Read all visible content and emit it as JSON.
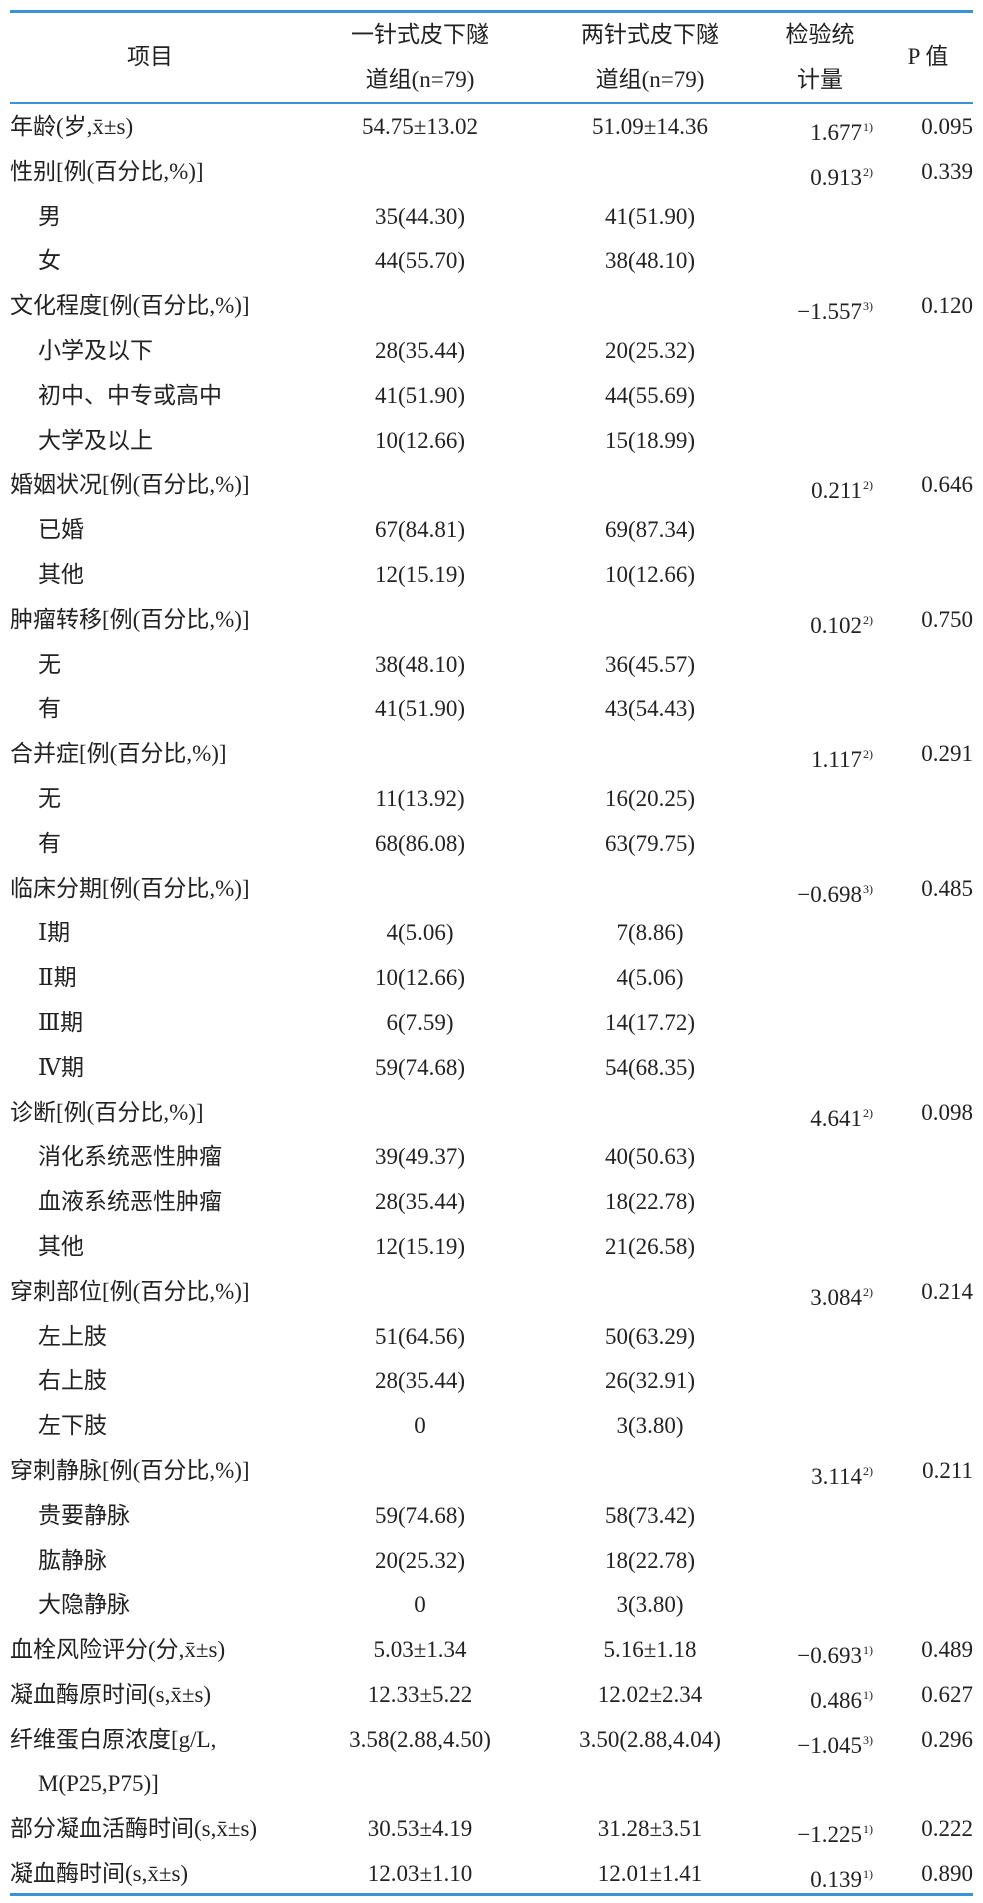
{
  "header": {
    "item": "项目",
    "group1": [
      "一针式皮下隧",
      "道组(n=79)"
    ],
    "group2": [
      "两针式皮下隧",
      "道组(n=79)"
    ],
    "stat": [
      "检验统",
      "计量"
    ],
    "p": "P 值"
  },
  "rule_color": "#3a93d4",
  "rows": [
    {
      "label": "年龄(岁,x̄±s)",
      "indent": false,
      "g1": "54.75±13.02",
      "g2": "51.09±14.36",
      "stat": "1.677",
      "note": "1)",
      "p": "0.095"
    },
    {
      "label": "性别[例(百分比,%)]",
      "indent": false,
      "g1": "",
      "g2": "",
      "stat": "0.913",
      "note": "2)",
      "p": "0.339"
    },
    {
      "label": "男",
      "indent": true,
      "g1": "35(44.30)",
      "g2": "41(51.90)",
      "stat": "",
      "note": "",
      "p": ""
    },
    {
      "label": "女",
      "indent": true,
      "g1": "44(55.70)",
      "g2": "38(48.10)",
      "stat": "",
      "note": "",
      "p": ""
    },
    {
      "label": "文化程度[例(百分比,%)]",
      "indent": false,
      "g1": "",
      "g2": "",
      "stat": "−1.557",
      "note": "3)",
      "p": "0.120"
    },
    {
      "label": "小学及以下",
      "indent": true,
      "g1": "28(35.44)",
      "g2": "20(25.32)",
      "stat": "",
      "note": "",
      "p": ""
    },
    {
      "label": "初中、中专或高中",
      "indent": true,
      "g1": "41(51.90)",
      "g2": "44(55.69)",
      "stat": "",
      "note": "",
      "p": ""
    },
    {
      "label": "大学及以上",
      "indent": true,
      "g1": "10(12.66)",
      "g2": "15(18.99)",
      "stat": "",
      "note": "",
      "p": ""
    },
    {
      "label": "婚姻状况[例(百分比,%)]",
      "indent": false,
      "g1": "",
      "g2": "",
      "stat": "0.211",
      "note": "2)",
      "p": "0.646"
    },
    {
      "label": "已婚",
      "indent": true,
      "g1": "67(84.81)",
      "g2": "69(87.34)",
      "stat": "",
      "note": "",
      "p": ""
    },
    {
      "label": "其他",
      "indent": true,
      "g1": "12(15.19)",
      "g2": "10(12.66)",
      "stat": "",
      "note": "",
      "p": ""
    },
    {
      "label": "肿瘤转移[例(百分比,%)]",
      "indent": false,
      "g1": "",
      "g2": "",
      "stat": "0.102",
      "note": "2)",
      "p": "0.750"
    },
    {
      "label": "无",
      "indent": true,
      "g1": "38(48.10)",
      "g2": "36(45.57)",
      "stat": "",
      "note": "",
      "p": ""
    },
    {
      "label": "有",
      "indent": true,
      "g1": "41(51.90)",
      "g2": "43(54.43)",
      "stat": "",
      "note": "",
      "p": ""
    },
    {
      "label": "合并症[例(百分比,%)]",
      "indent": false,
      "g1": "",
      "g2": "",
      "stat": "1.117",
      "note": "2)",
      "p": "0.291"
    },
    {
      "label": "无",
      "indent": true,
      "g1": "11(13.92)",
      "g2": "16(20.25)",
      "stat": "",
      "note": "",
      "p": ""
    },
    {
      "label": "有",
      "indent": true,
      "g1": "68(86.08)",
      "g2": "63(79.75)",
      "stat": "",
      "note": "",
      "p": ""
    },
    {
      "label": "临床分期[例(百分比,%)]",
      "indent": false,
      "g1": "",
      "g2": "",
      "stat": "−0.698",
      "note": "3)",
      "p": "0.485"
    },
    {
      "label": "Ⅰ期",
      "indent": true,
      "g1": "4(5.06)",
      "g2": "7(8.86)",
      "stat": "",
      "note": "",
      "p": ""
    },
    {
      "label": "Ⅱ期",
      "indent": true,
      "g1": "10(12.66)",
      "g2": "4(5.06)",
      "stat": "",
      "note": "",
      "p": ""
    },
    {
      "label": "Ⅲ期",
      "indent": true,
      "g1": "6(7.59)",
      "g2": "14(17.72)",
      "stat": "",
      "note": "",
      "p": ""
    },
    {
      "label": "Ⅳ期",
      "indent": true,
      "g1": "59(74.68)",
      "g2": "54(68.35)",
      "stat": "",
      "note": "",
      "p": ""
    },
    {
      "label": "诊断[例(百分比,%)]",
      "indent": false,
      "g1": "",
      "g2": "",
      "stat": "4.641",
      "note": "2)",
      "p": "0.098"
    },
    {
      "label": "消化系统恶性肿瘤",
      "indent": true,
      "g1": "39(49.37)",
      "g2": "40(50.63)",
      "stat": "",
      "note": "",
      "p": ""
    },
    {
      "label": "血液系统恶性肿瘤",
      "indent": true,
      "g1": "28(35.44)",
      "g2": "18(22.78)",
      "stat": "",
      "note": "",
      "p": ""
    },
    {
      "label": "其他",
      "indent": true,
      "g1": "12(15.19)",
      "g2": "21(26.58)",
      "stat": "",
      "note": "",
      "p": ""
    },
    {
      "label": "穿刺部位[例(百分比,%)]",
      "indent": false,
      "g1": "",
      "g2": "",
      "stat": "3.084",
      "note": "2)",
      "p": "0.214"
    },
    {
      "label": "左上肢",
      "indent": true,
      "g1": "51(64.56)",
      "g2": "50(63.29)",
      "stat": "",
      "note": "",
      "p": ""
    },
    {
      "label": "右上肢",
      "indent": true,
      "g1": "28(35.44)",
      "g2": "26(32.91)",
      "stat": "",
      "note": "",
      "p": ""
    },
    {
      "label": "左下肢",
      "indent": true,
      "g1": "0",
      "g2": "3(3.80)",
      "stat": "",
      "note": "",
      "p": ""
    },
    {
      "label": "穿刺静脉[例(百分比,%)]",
      "indent": false,
      "g1": "",
      "g2": "",
      "stat": "3.114",
      "note": "2)",
      "p": "0.211"
    },
    {
      "label": "贵要静脉",
      "indent": true,
      "g1": "59(74.68)",
      "g2": "58(73.42)",
      "stat": "",
      "note": "",
      "p": ""
    },
    {
      "label": "肱静脉",
      "indent": true,
      "g1": "20(25.32)",
      "g2": "18(22.78)",
      "stat": "",
      "note": "",
      "p": ""
    },
    {
      "label": "大隐静脉",
      "indent": true,
      "g1": "0",
      "g2": "3(3.80)",
      "stat": "",
      "note": "",
      "p": ""
    },
    {
      "label": "血栓风险评分(分,x̄±s)",
      "indent": false,
      "g1": "5.03±1.34",
      "g2": "5.16±1.18",
      "stat": "−0.693",
      "note": "1)",
      "p": "0.489"
    },
    {
      "label": "凝血酶原时间(s,x̄±s)",
      "indent": false,
      "g1": "12.33±5.22",
      "g2": "12.02±2.34",
      "stat": "0.486",
      "note": "1)",
      "p": "0.627"
    },
    {
      "label": "纤维蛋白原浓度[g/L,",
      "label2": "M(P25,P75)]",
      "indent": false,
      "g1": "3.58(2.88,4.50)",
      "g2": "3.50(2.88,4.04)",
      "stat": "−1.045",
      "note": "3)",
      "p": "0.296"
    },
    {
      "label": "部分凝血活酶时间(s,x̄±s)",
      "indent": false,
      "g1": "30.53±4.19",
      "g2": "31.28±3.51",
      "stat": "−1.225",
      "note": "1)",
      "p": "0.222"
    },
    {
      "label": "凝血酶时间(s,x̄±s)",
      "indent": false,
      "g1": "12.03±1.10",
      "g2": "12.01±1.41",
      "stat": "0.139",
      "note": "1)",
      "p": "0.890"
    }
  ]
}
